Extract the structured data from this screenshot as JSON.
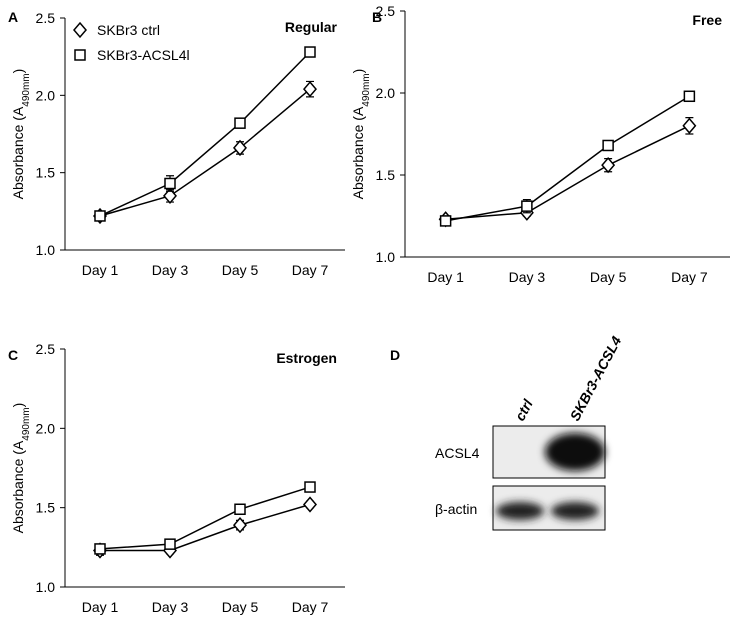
{
  "chart_data": [
    {
      "type": "line",
      "panel": "A",
      "title": "Regular",
      "y_label": [
        "Absorbance (A",
        "490mm",
        ")"
      ],
      "categories": [
        "Day 1",
        "Day 3",
        "Day 5",
        "Day 7"
      ],
      "ylim": [
        1.0,
        2.5
      ],
      "yticks": [
        {
          "value": 1.0,
          "label": "1.0"
        },
        1.5,
        {
          "value": 2.0,
          "label": "2.0"
        },
        2.5
      ],
      "legend": "top-left",
      "series": [
        {
          "name": "SKBr3 ctrl",
          "marker": "diamond",
          "color": "#000000",
          "values": [
            1.22,
            1.35,
            1.66,
            2.04
          ],
          "errors": [
            0.02,
            0.04,
            0.04,
            0.05
          ]
        },
        {
          "name": "SKBr3-ACSL4l",
          "marker": "square",
          "color": "#000000",
          "values": [
            1.22,
            1.43,
            1.82,
            2.28
          ],
          "errors": [
            0.02,
            0.05,
            0.02,
            0.02
          ]
        }
      ]
    },
    {
      "type": "line",
      "panel": "B",
      "title": "Free",
      "y_label": [
        "Absorbance (A",
        "490mm",
        ")"
      ],
      "categories": [
        "Day 1",
        "Day 3",
        "Day 5",
        "Day 7"
      ],
      "ylim": [
        1.0,
        2.5
      ],
      "yticks": [
        {
          "value": 1.0,
          "label": "1.0"
        },
        1.5,
        {
          "value": 2.0,
          "label": "2.0"
        },
        2.5
      ],
      "series": [
        {
          "marker": "diamond",
          "color": "#000000",
          "values": [
            1.23,
            1.27,
            1.56,
            1.8
          ],
          "errors": [
            0.02,
            0.02,
            0.04,
            0.05
          ]
        },
        {
          "marker": "square",
          "color": "#000000",
          "values": [
            1.22,
            1.31,
            1.68,
            1.98
          ],
          "errors": [
            0.02,
            0.04,
            0.02,
            0.02
          ]
        }
      ]
    },
    {
      "type": "line",
      "panel": "C",
      "title": "Estrogen",
      "y_label": [
        "Absorbance (A",
        "490mm",
        ")"
      ],
      "categories": [
        "Day 1",
        "Day 3",
        "Day 5",
        "Day 7"
      ],
      "ylim": [
        1.0,
        2.5
      ],
      "yticks": [
        {
          "value": 1.0,
          "label": "1.0"
        },
        1.5,
        {
          "value": 2.0,
          "label": "2.0"
        },
        2.5
      ],
      "series": [
        {
          "marker": "diamond",
          "color": "#000000",
          "values": [
            1.23,
            1.23,
            1.39,
            1.52
          ],
          "errors": [
            0.03,
            0.02,
            0.03,
            0.02
          ]
        },
        {
          "marker": "square",
          "color": "#000000",
          "values": [
            1.24,
            1.27,
            1.49,
            1.63
          ],
          "errors": [
            0.02,
            0.02,
            0.02,
            0.02
          ]
        }
      ]
    },
    {
      "type": "blot",
      "panel": "D",
      "lanes": [
        "ctrl",
        "SKBr3-ACSL4"
      ],
      "rows": [
        "ACSL4",
        "β-actin"
      ]
    }
  ]
}
